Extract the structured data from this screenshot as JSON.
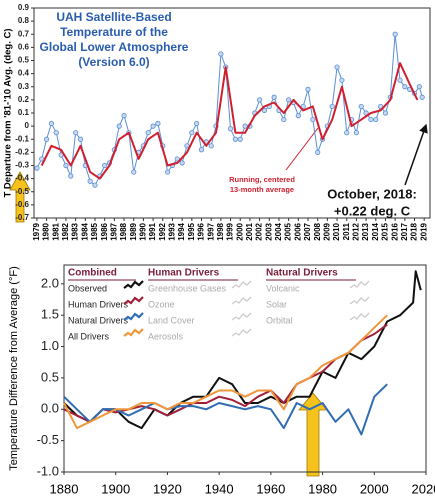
{
  "chart_data": [
    {
      "type": "line",
      "title_lines": [
        "UAH Satellite-Based",
        "Temperature of the",
        "Global Lower Atmosphere",
        "(Version 6.0)"
      ],
      "y_label": "T Departure from '81-'10 Avg. (deg. C)",
      "annotations": [
        "Running, centered",
        "13-month average",
        "October, 2018:",
        "+0.22 deg. C"
      ],
      "xlim": [
        1978.7,
        2019.6
      ],
      "ylim": [
        -0.7,
        0.9
      ],
      "xticks": [
        1979,
        1980,
        1981,
        1982,
        1983,
        1984,
        1985,
        1986,
        1987,
        1988,
        1989,
        1990,
        1991,
        1992,
        1993,
        1994,
        1995,
        1996,
        1997,
        1998,
        1999,
        2000,
        2001,
        2002,
        2003,
        2004,
        2005,
        2006,
        2007,
        2008,
        2009,
        2010,
        2011,
        2012,
        2013,
        2014,
        2015,
        2016,
        2017,
        2018,
        2019
      ],
      "yticks": [
        -0.7,
        -0.6,
        -0.5,
        -0.4,
        -0.3,
        -0.2,
        -0.1,
        0,
        0.1,
        0.2,
        0.3,
        0.4,
        0.5,
        0.6,
        0.7,
        0.8,
        0.9
      ],
      "series": [
        {
          "color": "#5b8fd6",
          "markers": true,
          "x": [
            1979,
            1979.5,
            1980,
            1980.5,
            1981,
            1981.5,
            1982,
            1982.5,
            1983,
            1983.5,
            1984,
            1984.5,
            1985,
            1985.5,
            1986,
            1986.5,
            1987,
            1987.5,
            1988,
            1988.5,
            1989,
            1989.5,
            1990,
            1990.5,
            1991,
            1991.5,
            1992,
            1992.5,
            1993,
            1993.5,
            1994,
            1994.5,
            1995,
            1995.5,
            1996,
            1996.5,
            1997,
            1997.5,
            1998,
            1998.5,
            1999,
            1999.5,
            2000,
            2000.5,
            2001,
            2001.5,
            2002,
            2002.5,
            2003,
            2003.5,
            2004,
            2004.5,
            2005,
            2005.5,
            2006,
            2006.5,
            2007,
            2007.5,
            2008,
            2008.5,
            2009,
            2009.5,
            2010,
            2010.5,
            2011,
            2011.5,
            2012,
            2012.5,
            2013,
            2013.5,
            2014,
            2014.5,
            2015,
            2015.5,
            2016,
            2016.5,
            2017,
            2017.5,
            2018,
            2018.5,
            2018.79
          ],
          "values": [
            -0.32,
            -0.25,
            -0.1,
            0.02,
            -0.05,
            -0.22,
            -0.3,
            -0.38,
            -0.05,
            -0.1,
            -0.3,
            -0.42,
            -0.45,
            -0.38,
            -0.3,
            -0.28,
            -0.18,
            0,
            0.08,
            -0.05,
            -0.35,
            -0.2,
            -0.15,
            -0.05,
            0,
            0.02,
            -0.15,
            -0.35,
            -0.3,
            -0.25,
            -0.28,
            -0.15,
            -0.05,
            0.02,
            -0.18,
            -0.12,
            -0.15,
            0,
            0.55,
            0.45,
            -0.02,
            -0.1,
            -0.1,
            0,
            0,
            0.1,
            0.2,
            0.12,
            0.15,
            0.22,
            0.12,
            0.05,
            0.2,
            0.18,
            0.08,
            0.15,
            0.28,
            0.05,
            -0.2,
            -0.1,
            0,
            0.15,
            0.45,
            0.35,
            -0.05,
            0.05,
            -0.05,
            0.15,
            0.1,
            0.05,
            0.05,
            0.15,
            0.1,
            0.22,
            0.7,
            0.35,
            0.3,
            0.28,
            0.25,
            0.3,
            0.22
          ]
        },
        {
          "color": "#d02030",
          "markers": false,
          "x": [
            1979.5,
            1980.5,
            1981.5,
            1982.5,
            1983.5,
            1984.5,
            1985.5,
            1986.5,
            1987.5,
            1988.5,
            1989.5,
            1990.5,
            1991.5,
            1992.5,
            1993.5,
            1994.5,
            1995.5,
            1996.5,
            1997.5,
            1998.5,
            1999.5,
            2000.5,
            2001.5,
            2002.5,
            2003.5,
            2004.5,
            2005.5,
            2006.5,
            2007.5,
            2008.5,
            2009.5,
            2010.5,
            2011.5,
            2012.5,
            2013.5,
            2014.5,
            2015.5,
            2016.5,
            2017.5,
            2018.3
          ],
          "values": [
            -0.3,
            -0.15,
            -0.18,
            -0.3,
            -0.15,
            -0.35,
            -0.4,
            -0.3,
            -0.1,
            -0.05,
            -0.25,
            -0.1,
            -0.05,
            -0.3,
            -0.28,
            -0.2,
            -0.05,
            -0.15,
            -0.05,
            0.45,
            -0.05,
            -0.05,
            0.08,
            0.15,
            0.18,
            0.1,
            0.2,
            0.12,
            0.15,
            -0.1,
            0.05,
            0.3,
            0,
            0.05,
            0.1,
            0.12,
            0.2,
            0.48,
            0.32,
            0.2
          ]
        }
      ]
    },
    {
      "type": "line",
      "y_label": "Temperature Difference from Average (°F)",
      "xlim": [
        1880,
        2020
      ],
      "ylim": [
        -1.0,
        2.3
      ],
      "xticks": [
        1880,
        1900,
        1920,
        1940,
        1960,
        1980,
        2000,
        2020
      ],
      "yticks": [
        {
          "value": -1.0,
          "label": "-1.0"
        },
        -0.5,
        {
          "value": 0.0,
          "label": "0.0"
        },
        0.5,
        {
          "value": 1.0,
          "label": "1.0"
        },
        1.5,
        {
          "value": 2.0,
          "label": "2.0"
        }
      ],
      "legend_groups": [
        {
          "title": "Combined"
        },
        {
          "title": "Human Drivers",
          "entries": [
            "Greenhouse Gases",
            "Ozone",
            "Land Cover",
            "Aerosols"
          ]
        },
        {
          "title": "Natural Drivers",
          "entries": [
            "Volcanic",
            "Solar",
            "Orbital"
          ]
        }
      ],
      "series": [
        {
          "name": "Observed",
          "color": "#111111",
          "x": [
            1880,
            1885,
            1890,
            1895,
            1900,
            1905,
            1910,
            1915,
            1920,
            1925,
            1930,
            1935,
            1940,
            1945,
            1950,
            1955,
            1960,
            1965,
            1970,
            1975,
            1980,
            1985,
            1990,
            1995,
            2000,
            2005,
            2010,
            2015,
            2016,
            2018
          ],
          "values": [
            0.1,
            -0.1,
            -0.2,
            0,
            0,
            -0.2,
            -0.3,
            0,
            -0.1,
            0.1,
            0.2,
            0.2,
            0.5,
            0.4,
            0.1,
            0.1,
            0.2,
            0.1,
            0.2,
            0.2,
            0.6,
            0.5,
            0.9,
            0.8,
            1.0,
            1.4,
            1.5,
            1.7,
            2.2,
            1.9
          ]
        },
        {
          "name": "Human Drivers",
          "color": "#a0203a",
          "x": [
            1880,
            1885,
            1890,
            1895,
            1900,
            1905,
            1910,
            1915,
            1920,
            1925,
            1930,
            1935,
            1940,
            1945,
            1950,
            1955,
            1960,
            1965,
            1970,
            1975,
            1980,
            1985,
            1990,
            1995,
            2000,
            2005
          ],
          "values": [
            0,
            -0.1,
            -0.2,
            0,
            -0.05,
            0,
            0.05,
            0,
            -0.1,
            0,
            0.1,
            0.1,
            0.2,
            0.15,
            0.05,
            0.2,
            0.3,
            0.1,
            0.4,
            0.5,
            0.6,
            0.8,
            0.9,
            1.1,
            1.2,
            1.35
          ]
        },
        {
          "name": "Natural Drivers",
          "color": "#2f6db5",
          "x": [
            1880,
            1885,
            1890,
            1895,
            1900,
            1905,
            1910,
            1915,
            1920,
            1925,
            1930,
            1935,
            1940,
            1945,
            1950,
            1955,
            1960,
            1965,
            1970,
            1975,
            1980,
            1985,
            1990,
            1995,
            2000,
            2005
          ],
          "values": [
            0.2,
            0,
            -0.2,
            0,
            0,
            -0.1,
            0,
            0.1,
            0,
            0.05,
            0.05,
            0,
            0.1,
            0.05,
            0,
            0.05,
            0,
            -0.3,
            0.1,
            0,
            0.1,
            -0.2,
            0,
            -0.4,
            0.2,
            0.4
          ]
        },
        {
          "name": "All Drivers",
          "color": "#f0963a",
          "x": [
            1880,
            1885,
            1890,
            1895,
            1900,
            1905,
            1910,
            1915,
            1920,
            1925,
            1930,
            1935,
            1940,
            1945,
            1950,
            1955,
            1960,
            1965,
            1970,
            1975,
            1980,
            1985,
            1990,
            1995,
            2000,
            2005
          ],
          "values": [
            0.1,
            -0.3,
            -0.2,
            -0.1,
            0,
            0,
            0.1,
            0.1,
            0,
            0.1,
            0.1,
            0.2,
            0.3,
            0.3,
            0.2,
            0.3,
            0.3,
            0,
            0.4,
            0.5,
            0.7,
            0.8,
            0.9,
            1.1,
            1.3,
            1.5
          ]
        }
      ]
    }
  ]
}
